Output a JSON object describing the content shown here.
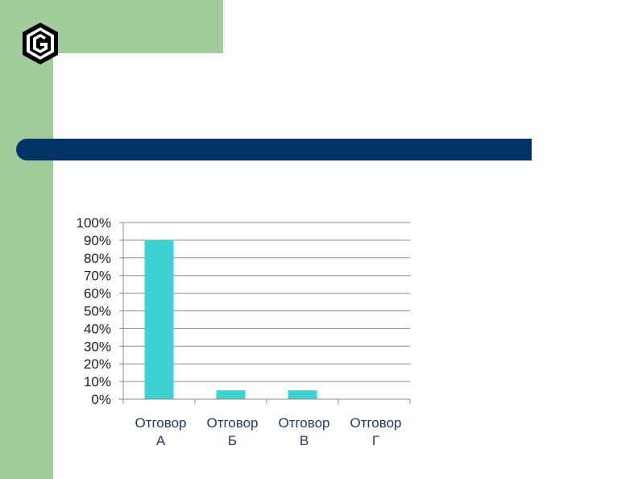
{
  "chart_data": {
    "type": "bar",
    "categories": [
      [
        "Отговор",
        "А"
      ],
      [
        "Отговор",
        "Б"
      ],
      [
        "Отговор",
        "В"
      ],
      [
        "Отговор",
        "Г"
      ]
    ],
    "values": [
      90,
      5,
      5,
      0
    ],
    "ylim": [
      0,
      100
    ],
    "yticks": [
      "0%",
      "10%",
      "20%",
      "30%",
      "40%",
      "50%",
      "60%",
      "70%",
      "80%",
      "90%",
      "100%"
    ],
    "grid": true,
    "bar_color": "#3dd1d1",
    "title": "",
    "xlabel": "",
    "ylabel": ""
  },
  "colors": {
    "sidebar": "#a0cd9b",
    "title_bar": "#003366"
  },
  "logo": {
    "icon": "hexagon-emblem-icon"
  }
}
